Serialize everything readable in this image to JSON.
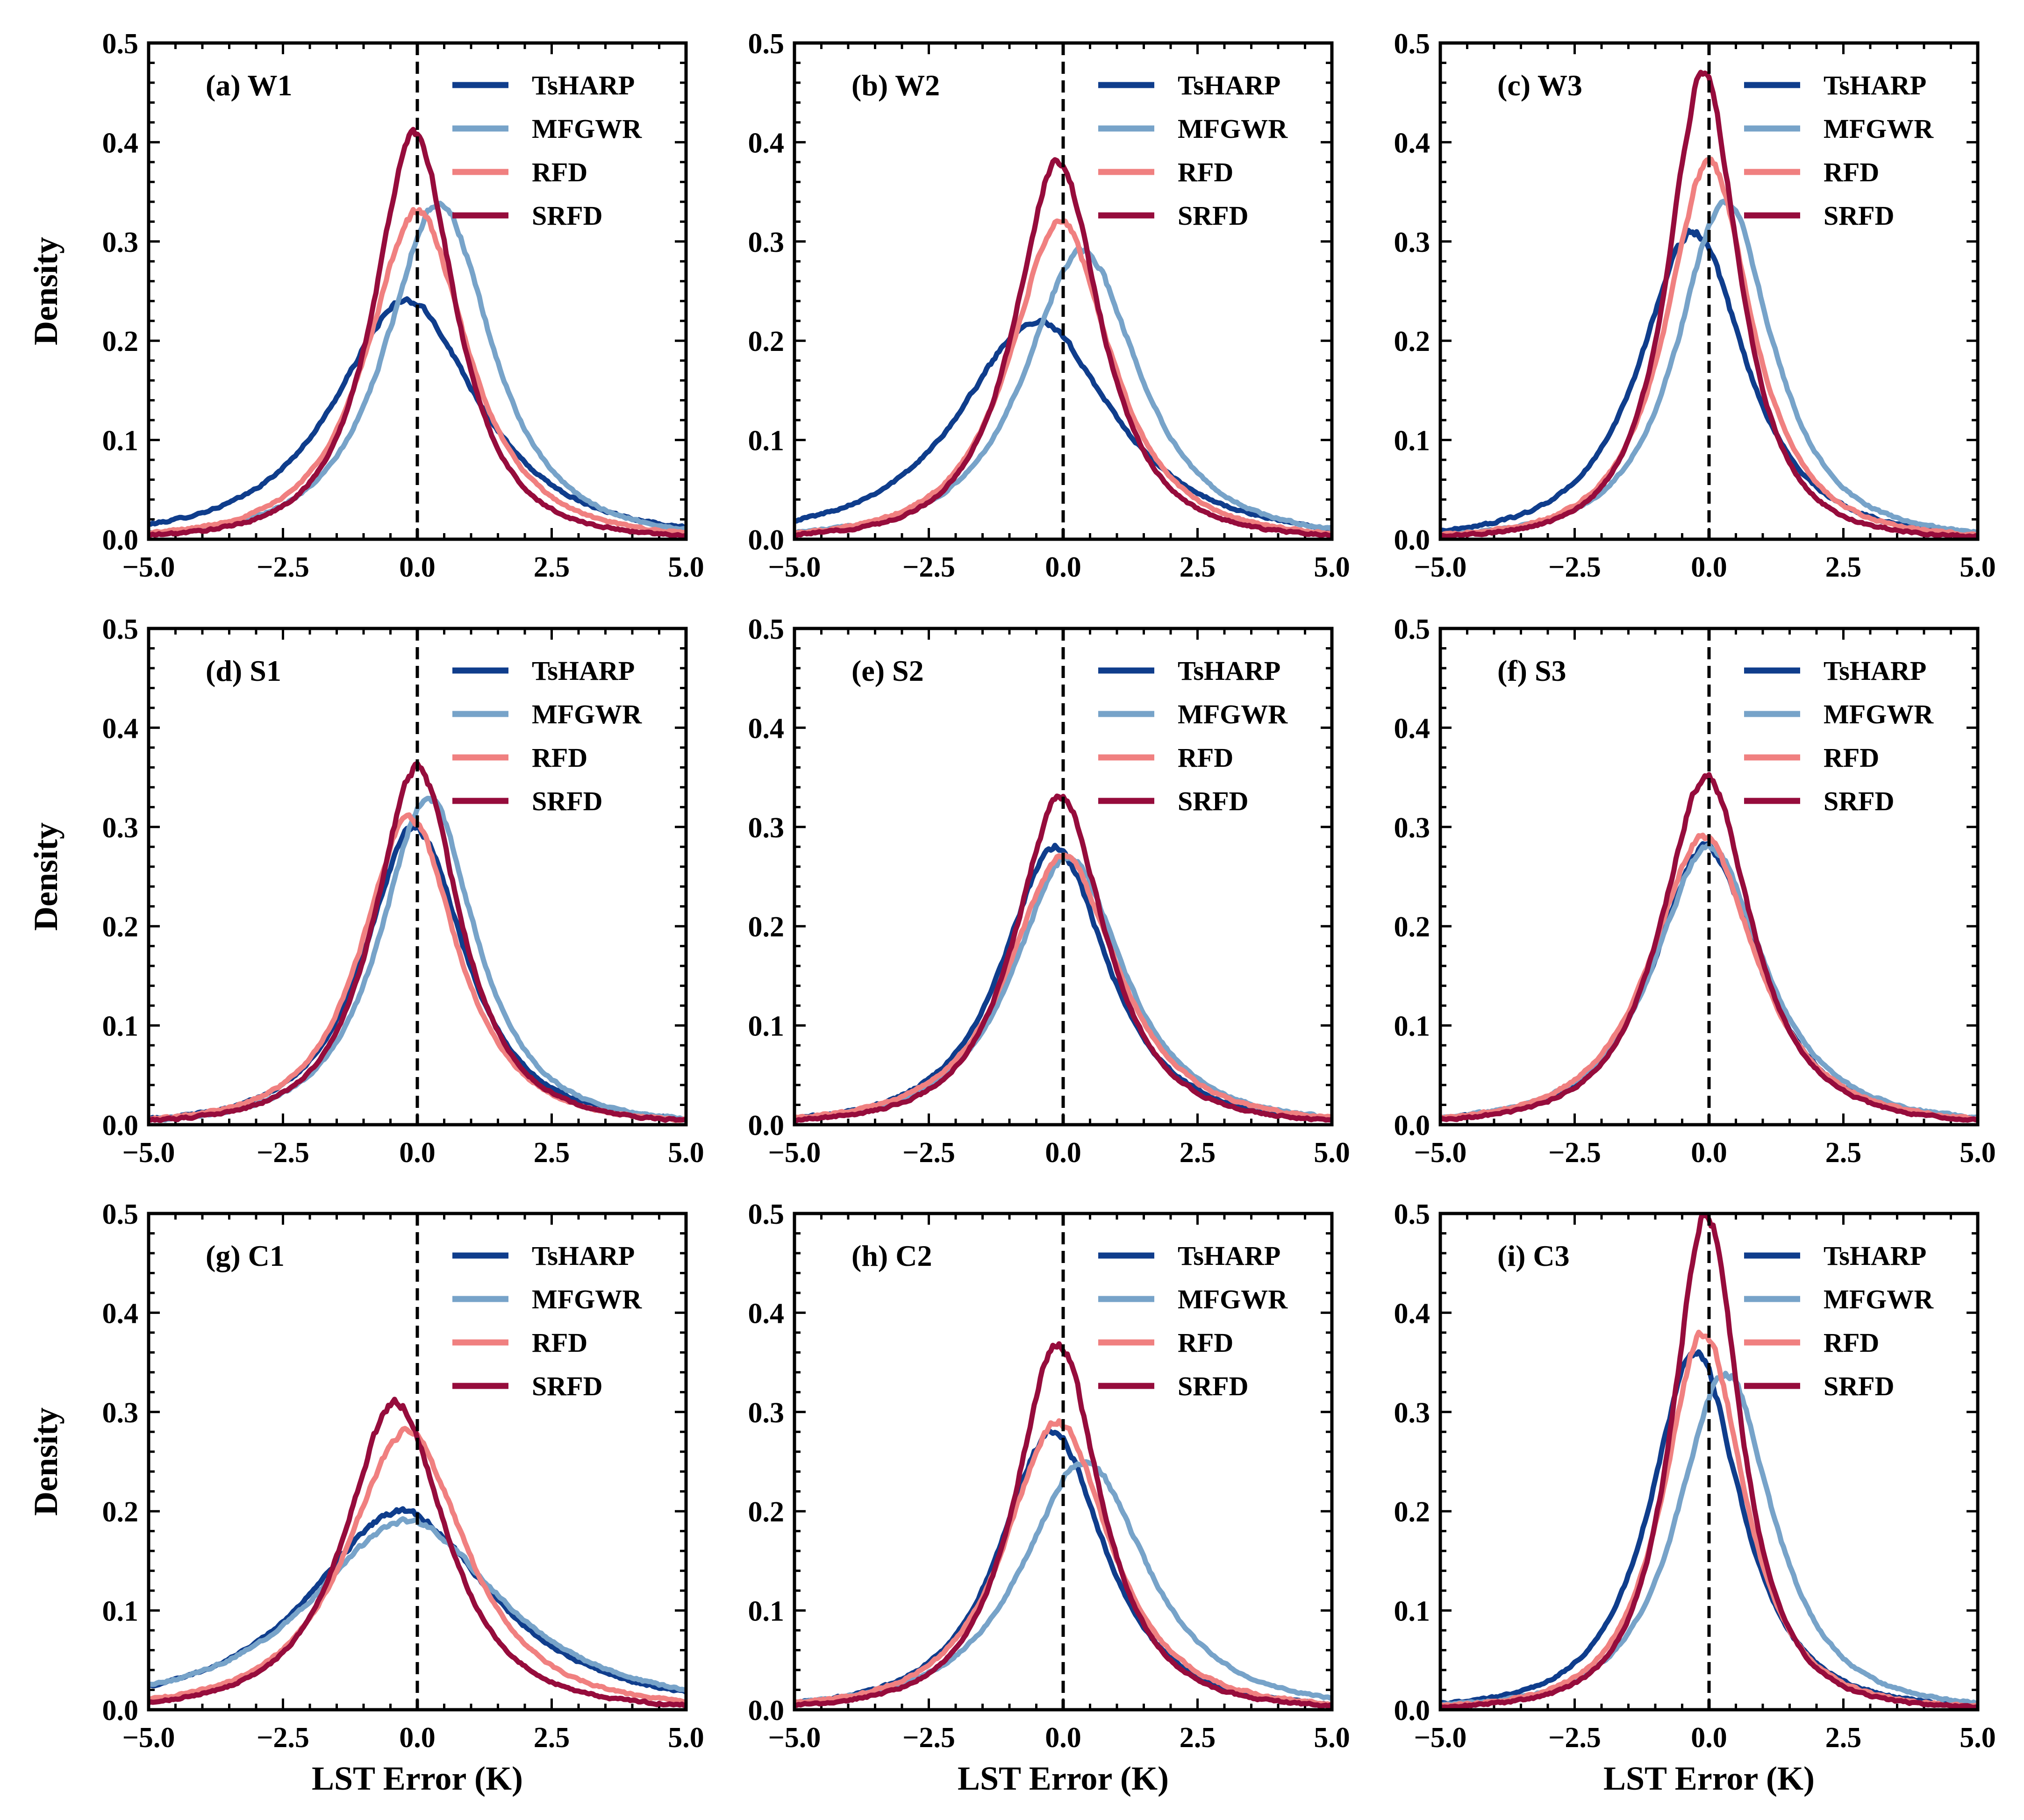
{
  "chart_data": {
    "type": "line",
    "title": "",
    "xlabel": "LST Error (K)",
    "ylabel": "Density",
    "xlim": [
      -5,
      5
    ],
    "ylim": [
      0,
      0.5
    ],
    "xticks": [
      -5.0,
      -2.5,
      0.0,
      2.5,
      5.0
    ],
    "xtick_labels": [
      "−5.0",
      "−2.5",
      "0.0",
      "2.5",
      "5.0"
    ],
    "yticks": [
      0.0,
      0.1,
      0.2,
      0.3,
      0.4,
      0.5
    ],
    "ytick_labels": [
      "0.0",
      "0.1",
      "0.2",
      "0.3",
      "0.4",
      "0.5"
    ],
    "reference_line": {
      "x": 0,
      "style": "dashed",
      "color": "#000000"
    },
    "legend_position": "top-right",
    "series_styles": [
      {
        "name": "TsHARP",
        "color": "#0f3d8c"
      },
      {
        "name": "MFGWR",
        "color": "#77a3c9"
      },
      {
        "name": "RFD",
        "color": "#f08080"
      },
      {
        "name": "SRFD",
        "color": "#960c3c"
      }
    ],
    "panels": [
      {
        "label": "(a) W1",
        "series": [
          {
            "name": "TsHARP",
            "peak": 0.24,
            "center": -0.2,
            "width": 1.5,
            "tail": 0.02
          },
          {
            "name": "MFGWR",
            "peak": 0.34,
            "center": 0.4,
            "width": 1.1,
            "tail": 0.01
          },
          {
            "name": "RFD",
            "peak": 0.33,
            "center": 0.0,
            "width": 1.05,
            "tail": 0.008
          },
          {
            "name": "SRFD",
            "peak": 0.41,
            "center": -0.05,
            "width": 0.85,
            "tail": 0.003
          }
        ]
      },
      {
        "label": "(b) W2",
        "series": [
          {
            "name": "TsHARP",
            "peak": 0.22,
            "center": -0.5,
            "width": 1.6,
            "tail": 0.015
          },
          {
            "name": "MFGWR",
            "peak": 0.29,
            "center": 0.35,
            "width": 1.2,
            "tail": 0.01
          },
          {
            "name": "RFD",
            "peak": 0.32,
            "center": -0.05,
            "width": 1.05,
            "tail": 0.008
          },
          {
            "name": "SRFD",
            "peak": 0.38,
            "center": -0.1,
            "width": 0.9,
            "tail": 0.004
          }
        ]
      },
      {
        "label": "(c) W3",
        "series": [
          {
            "name": "TsHARP",
            "peak": 0.31,
            "center": -0.3,
            "width": 1.1,
            "tail": 0.012
          },
          {
            "name": "MFGWR",
            "peak": 0.34,
            "center": 0.3,
            "width": 1.0,
            "tail": 0.008
          },
          {
            "name": "RFD",
            "peak": 0.38,
            "center": 0.0,
            "width": 0.9,
            "tail": 0.005
          },
          {
            "name": "SRFD",
            "peak": 0.47,
            "center": -0.1,
            "width": 0.75,
            "tail": 0.002
          }
        ]
      },
      {
        "label": "(d) S1",
        "series": [
          {
            "name": "TsHARP",
            "peak": 0.3,
            "center": -0.05,
            "width": 1.05,
            "tail": 0.005
          },
          {
            "name": "MFGWR",
            "peak": 0.33,
            "center": 0.2,
            "width": 1.0,
            "tail": 0.004
          },
          {
            "name": "RFD",
            "peak": 0.31,
            "center": -0.15,
            "width": 1.0,
            "tail": 0.004
          },
          {
            "name": "SRFD",
            "peak": 0.36,
            "center": 0.0,
            "width": 0.9,
            "tail": 0.003
          }
        ]
      },
      {
        "label": "(e) S2",
        "series": [
          {
            "name": "TsHARP",
            "peak": 0.28,
            "center": -0.15,
            "width": 1.1,
            "tail": 0.006
          },
          {
            "name": "MFGWR",
            "peak": 0.27,
            "center": 0.1,
            "width": 1.15,
            "tail": 0.006
          },
          {
            "name": "RFD",
            "peak": 0.27,
            "center": 0.0,
            "width": 1.15,
            "tail": 0.006
          },
          {
            "name": "SRFD",
            "peak": 0.33,
            "center": -0.05,
            "width": 0.95,
            "tail": 0.003
          }
        ]
      },
      {
        "label": "(f) S3",
        "series": [
          {
            "name": "TsHARP",
            "peak": 0.28,
            "center": -0.05,
            "width": 1.1,
            "tail": 0.006
          },
          {
            "name": "MFGWR",
            "peak": 0.28,
            "center": 0.0,
            "width": 1.15,
            "tail": 0.006
          },
          {
            "name": "RFD",
            "peak": 0.29,
            "center": -0.1,
            "width": 1.1,
            "tail": 0.005
          },
          {
            "name": "SRFD",
            "peak": 0.35,
            "center": -0.05,
            "width": 0.95,
            "tail": 0.003
          }
        ]
      },
      {
        "label": "(g) C1",
        "series": [
          {
            "name": "TsHARP",
            "peak": 0.2,
            "center": -0.3,
            "width": 1.9,
            "tail": 0.025
          },
          {
            "name": "MFGWR",
            "peak": 0.19,
            "center": -0.2,
            "width": 2.0,
            "tail": 0.025
          },
          {
            "name": "RFD",
            "peak": 0.28,
            "center": -0.2,
            "width": 1.25,
            "tail": 0.01
          },
          {
            "name": "SRFD",
            "peak": 0.31,
            "center": -0.4,
            "width": 1.05,
            "tail": 0.005
          }
        ]
      },
      {
        "label": "(h) C2",
        "series": [
          {
            "name": "TsHARP",
            "peak": 0.28,
            "center": -0.2,
            "width": 1.1,
            "tail": 0.006
          },
          {
            "name": "MFGWR",
            "peak": 0.25,
            "center": 0.4,
            "width": 1.3,
            "tail": 0.008
          },
          {
            "name": "RFD",
            "peak": 0.29,
            "center": -0.1,
            "width": 1.1,
            "tail": 0.006
          },
          {
            "name": "SRFD",
            "peak": 0.37,
            "center": -0.1,
            "width": 0.9,
            "tail": 0.003
          }
        ]
      },
      {
        "label": "(i) C3",
        "series": [
          {
            "name": "TsHARP",
            "peak": 0.36,
            "center": -0.25,
            "width": 0.95,
            "tail": 0.005
          },
          {
            "name": "MFGWR",
            "peak": 0.34,
            "center": 0.3,
            "width": 1.0,
            "tail": 0.005
          },
          {
            "name": "RFD",
            "peak": 0.38,
            "center": -0.1,
            "width": 0.85,
            "tail": 0.003
          },
          {
            "name": "SRFD",
            "peak": 0.5,
            "center": -0.05,
            "width": 0.72,
            "tail": 0.001
          }
        ]
      }
    ]
  }
}
